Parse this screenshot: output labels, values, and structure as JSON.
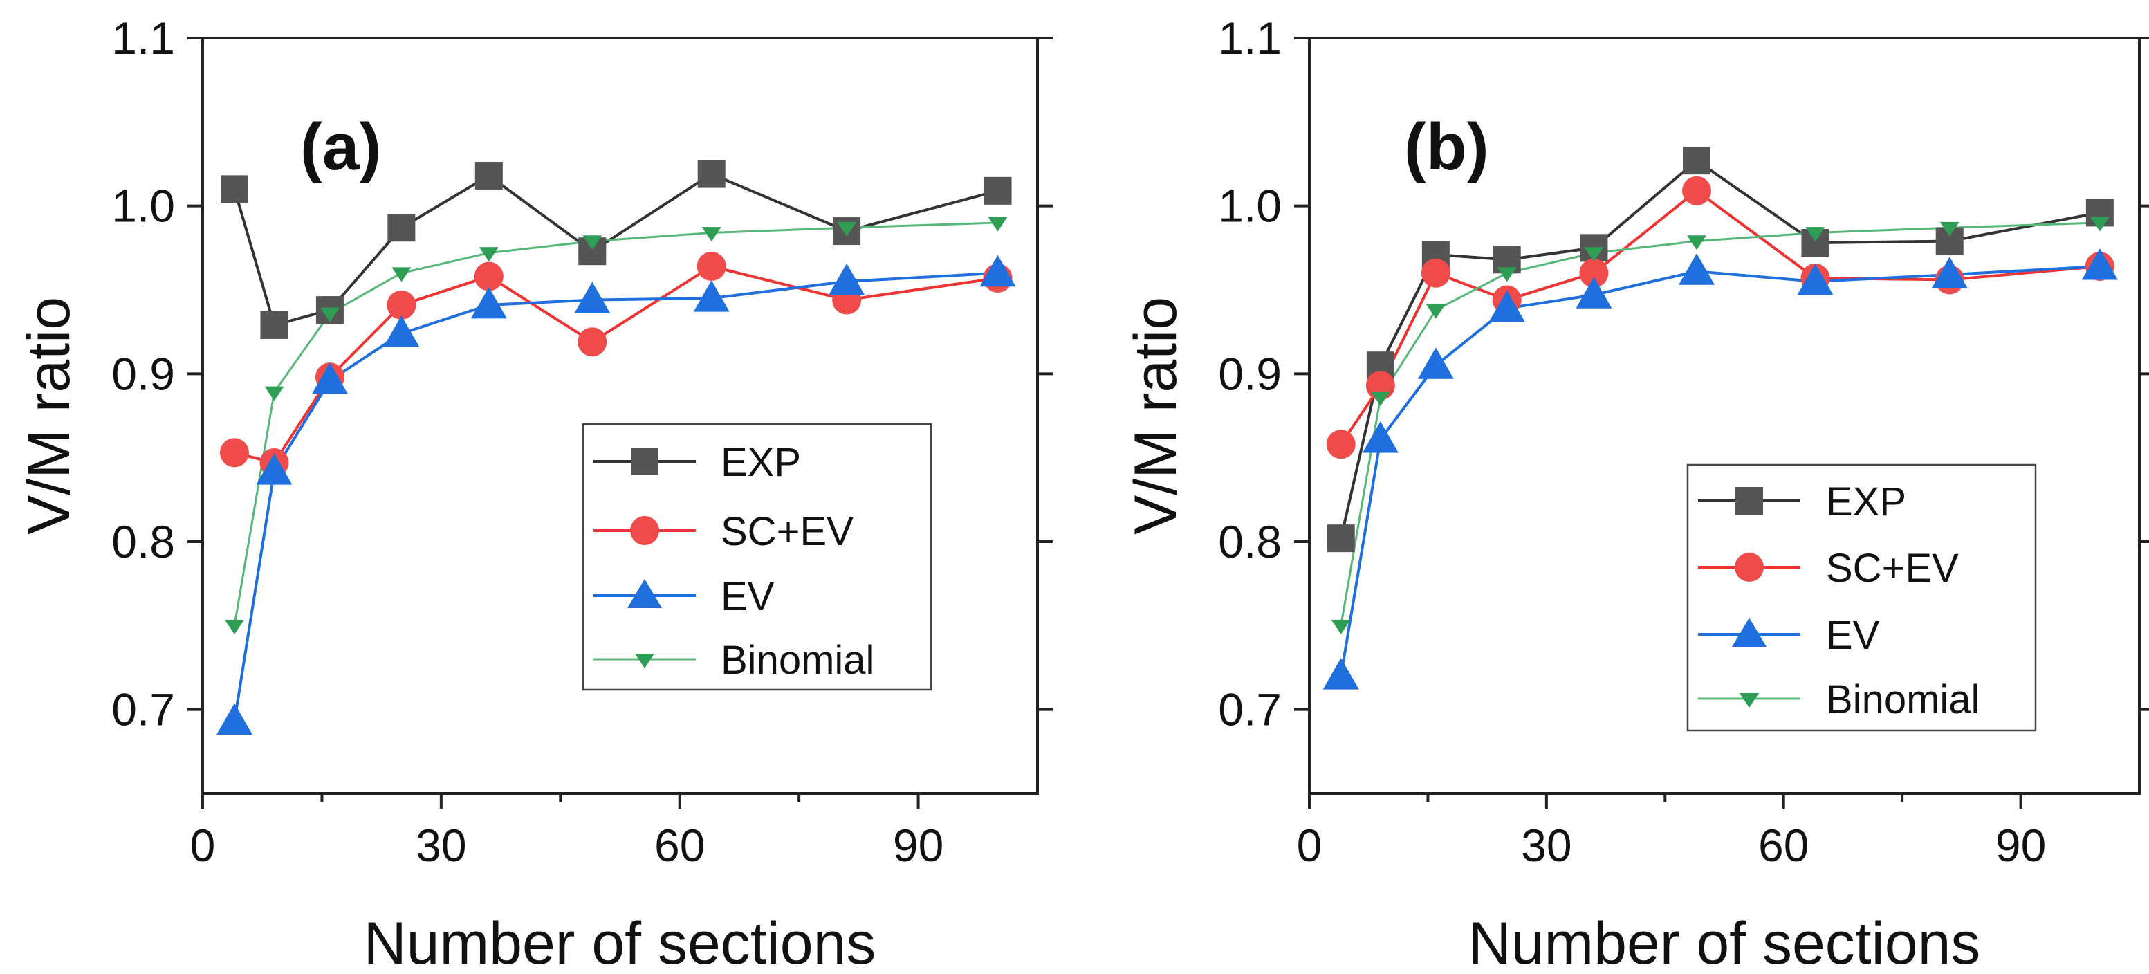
{
  "chart_data": [
    {
      "type": "line",
      "panel_label": "(a)",
      "xlabel": "Number of sections",
      "ylabel": "V/M ratio",
      "xlim": [
        0,
        105
      ],
      "ylim": [
        0.65,
        1.1
      ],
      "xticks": [
        0,
        30,
        60,
        90
      ],
      "xtick_labels": [
        "0",
        "30",
        "60",
        "90"
      ],
      "yticks": [
        0.7,
        0.8,
        0.9,
        1.0,
        1.1
      ],
      "ytick_labels": [
        "0.7",
        "0.8",
        "0.9",
        "1.0",
        "1.1"
      ],
      "x": [
        4,
        9,
        16,
        25,
        36,
        49,
        64,
        81,
        100
      ],
      "series": [
        {
          "name": "EXP",
          "marker": "square",
          "color": "#555555",
          "line_color": "#333333",
          "values": [
            1.01,
            0.929,
            0.938,
            0.987,
            1.018,
            0.973,
            1.019,
            0.985,
            1.009
          ]
        },
        {
          "name": "SC+EV",
          "marker": "circle",
          "color": "#f04b4b",
          "line_color": "#ee3333",
          "values": [
            0.853,
            0.847,
            0.898,
            0.941,
            0.958,
            0.919,
            0.964,
            0.944,
            0.957
          ]
        },
        {
          "name": "EV",
          "marker": "triangle-up",
          "color": "#1f6fde",
          "line_color": "#1f6fde",
          "values": [
            0.693,
            0.842,
            0.896,
            0.924,
            0.941,
            0.944,
            0.945,
            0.955,
            0.96
          ]
        },
        {
          "name": "Binomial",
          "marker": "triangle-down",
          "color": "#2e9e55",
          "line_color": "#55b878",
          "values": [
            0.75,
            0.889,
            0.936,
            0.96,
            0.972,
            0.979,
            0.984,
            0.987,
            0.99
          ]
        }
      ],
      "legend_position": "lower-right"
    },
    {
      "type": "line",
      "panel_label": "(b)",
      "xlabel": "Number of sections",
      "ylabel": "V/M ratio",
      "xlim": [
        0,
        105
      ],
      "ylim": [
        0.65,
        1.1
      ],
      "xticks": [
        0,
        30,
        60,
        90
      ],
      "xtick_labels": [
        "0",
        "30",
        "60",
        "90"
      ],
      "yticks": [
        0.7,
        0.8,
        0.9,
        1.0,
        1.1
      ],
      "ytick_labels": [
        "0.7",
        "0.8",
        "0.9",
        "1.0",
        "1.1"
      ],
      "x": [
        4,
        9,
        16,
        25,
        36,
        49,
        64,
        81,
        100
      ],
      "series": [
        {
          "name": "EXP",
          "marker": "square",
          "color": "#555555",
          "line_color": "#333333",
          "values": [
            0.802,
            0.905,
            0.971,
            0.968,
            0.975,
            1.027,
            0.978,
            0.979,
            0.996
          ]
        },
        {
          "name": "SC+EV",
          "marker": "circle",
          "color": "#f04b4b",
          "line_color": "#ee3333",
          "values": [
            0.858,
            0.893,
            0.96,
            0.944,
            0.96,
            1.009,
            0.957,
            0.956,
            0.964
          ]
        },
        {
          "name": "EV",
          "marker": "triangle-up",
          "color": "#1f6fde",
          "line_color": "#1f6fde",
          "values": [
            0.72,
            0.861,
            0.905,
            0.939,
            0.947,
            0.961,
            0.955,
            0.959,
            0.964
          ]
        },
        {
          "name": "Binomial",
          "marker": "triangle-down",
          "color": "#2e9e55",
          "line_color": "#55b878",
          "values": [
            0.75,
            0.886,
            0.938,
            0.96,
            0.972,
            0.979,
            0.984,
            0.987,
            0.99
          ]
        }
      ],
      "legend_position": "lower-right"
    }
  ]
}
